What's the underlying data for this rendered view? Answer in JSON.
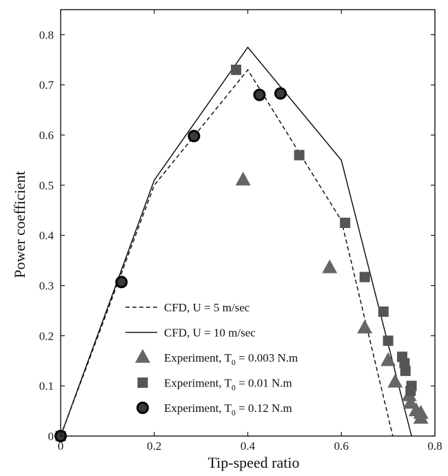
{
  "chart_data": {
    "type": "line",
    "xlabel": "Tip-speed ratio",
    "ylabel": "Power coefficient",
    "xlim": [
      0,
      0.8
    ],
    "ylim": [
      0,
      0.85
    ],
    "x_ticks": [
      0,
      0.2,
      0.4,
      0.6,
      0.8
    ],
    "x_tick_labels": [
      "0",
      "0.2",
      "0.4",
      "0.6",
      "0.8"
    ],
    "y_ticks": [
      0,
      0.1,
      0.2,
      0.3,
      0.4,
      0.5,
      0.6,
      0.7,
      0.8
    ],
    "y_tick_labels": [
      "0",
      "0.1",
      "0.2",
      "0.3",
      "0.4",
      "0.5",
      "0.6",
      "0.7",
      "0.8"
    ],
    "grid": false,
    "legend_position": "lower-left",
    "series": [
      {
        "name": "CFD, U = 5 m/sec",
        "style": "dashed-line",
        "color": "#111111",
        "points": [
          [
            0,
            0
          ],
          [
            0.2,
            0.5
          ],
          [
            0.4,
            0.73
          ],
          [
            0.6,
            0.43
          ],
          [
            0.71,
            0
          ]
        ]
      },
      {
        "name": "CFD, U = 10 m/sec",
        "style": "solid-line",
        "color": "#111111",
        "points": [
          [
            0,
            0
          ],
          [
            0.2,
            0.51
          ],
          [
            0.4,
            0.775
          ],
          [
            0.6,
            0.55
          ],
          [
            0.75,
            0
          ]
        ]
      },
      {
        "name": "Experiment, T",
        "name_sub": "0",
        "name_tail": " = 0.003 N.m",
        "style": "triangle",
        "color": "#666666",
        "points": [
          [
            0.39,
            0.51
          ],
          [
            0.575,
            0.335
          ],
          [
            0.65,
            0.215
          ],
          [
            0.7,
            0.15
          ],
          [
            0.715,
            0.107
          ],
          [
            0.745,
            0.08
          ],
          [
            0.748,
            0.065
          ],
          [
            0.76,
            0.05
          ],
          [
            0.77,
            0.045
          ],
          [
            0.77,
            0.035
          ]
        ]
      },
      {
        "name": "Experiment, T",
        "name_sub": "0",
        "name_tail": " = 0.01 N.m",
        "style": "square",
        "color": "#555555",
        "points": [
          [
            0,
            0
          ],
          [
            0.375,
            0.73
          ],
          [
            0.51,
            0.56
          ],
          [
            0.608,
            0.425
          ],
          [
            0.65,
            0.317
          ],
          [
            0.69,
            0.248
          ],
          [
            0.7,
            0.19
          ],
          [
            0.73,
            0.158
          ],
          [
            0.735,
            0.145
          ],
          [
            0.737,
            0.13
          ],
          [
            0.75,
            0.1
          ],
          [
            0.748,
            0.09
          ]
        ]
      },
      {
        "name": "Experiment, T",
        "name_sub": "0",
        "name_tail": " = 0.12 N.m",
        "style": "circle",
        "color": "#3a3a3a",
        "points": [
          [
            0,
            0
          ],
          [
            0.13,
            0.307
          ],
          [
            0.285,
            0.598
          ],
          [
            0.425,
            0.68
          ],
          [
            0.47,
            0.683
          ]
        ]
      }
    ]
  }
}
